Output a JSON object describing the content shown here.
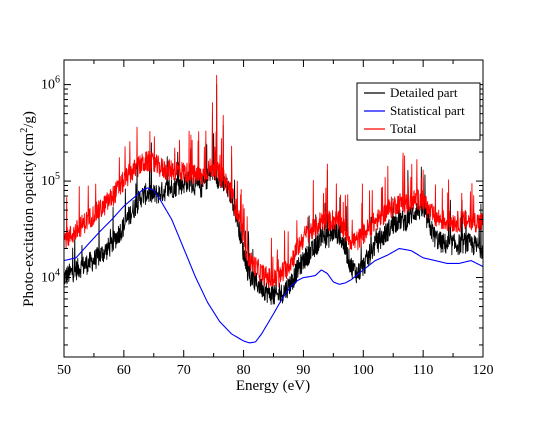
{
  "chart_data": {
    "type": "line",
    "title": "",
    "xlabel": "Energy (eV)",
    "ylabel_prefix": "Photo-excitation opacity (cm",
    "ylabel_sup": "2",
    "ylabel_suffix": "/g)",
    "xlim": [
      50,
      120
    ],
    "ylim": [
      1500,
      1800000
    ],
    "yscale": "log",
    "x_ticks": [
      50,
      60,
      70,
      80,
      90,
      100,
      110,
      120
    ],
    "x_tick_labels": [
      "50",
      "60",
      "70",
      "80",
      "90",
      "100",
      "110",
      "120"
    ],
    "y_ticks": [
      {
        "value": 10000,
        "base": "10",
        "exp": "4"
      },
      {
        "value": 100000,
        "base": "10",
        "exp": "5"
      },
      {
        "value": 1000000,
        "base": "10",
        "exp": "6"
      }
    ],
    "grid": false,
    "legend_position": "top-right",
    "series": [
      {
        "name": "Detailed part",
        "color": "#000000",
        "noisy": true,
        "x": [
          50,
          51,
          52,
          53,
          54,
          55,
          56,
          57,
          58,
          59,
          60,
          61,
          62,
          63,
          64,
          65,
          66,
          67,
          68,
          69,
          70,
          71,
          72,
          73,
          74,
          75,
          76,
          77,
          78,
          79,
          80,
          81,
          82,
          83,
          84,
          85,
          86,
          87,
          88,
          89,
          90,
          91,
          92,
          93,
          94,
          95,
          96,
          97,
          98,
          99,
          100,
          101,
          102,
          103,
          104,
          105,
          106,
          107,
          108,
          109,
          110,
          111,
          112,
          113,
          114,
          115,
          116,
          117,
          118,
          119,
          120
        ],
        "values": [
          10000,
          11000,
          12000,
          13000,
          14000,
          15000,
          17000,
          19000,
          22000,
          28000,
          34000,
          45000,
          56000,
          70000,
          75000,
          72000,
          75000,
          80000,
          85000,
          90000,
          95000,
          100000,
          90000,
          85000,
          110000,
          130000,
          100000,
          90000,
          70000,
          40000,
          18000,
          10000,
          9000,
          8000,
          7000,
          6500,
          6500,
          7500,
          9000,
          12000,
          15000,
          18000,
          20000,
          28000,
          25000,
          30000,
          28000,
          20000,
          13000,
          11000,
          13000,
          17000,
          22000,
          25000,
          30000,
          36000,
          40000,
          38000,
          45000,
          50000,
          50000,
          35000,
          26000,
          23000,
          22000,
          22000,
          22000,
          23000,
          22000,
          21000,
          20000
        ],
        "spikes": [
          [
            75.5,
            1000000
          ],
          [
            74.8,
            500000
          ],
          [
            76.6,
            380000
          ],
          [
            73.7,
            250000
          ],
          [
            71.2,
            220000
          ],
          [
            78.0,
            180000
          ],
          [
            94.0,
            130000
          ],
          [
            110.0,
            110000
          ],
          [
            107.5,
            80000
          ]
        ]
      },
      {
        "name": "Statistical part",
        "color": "#0000ff",
        "noisy": false,
        "x": [
          50,
          52,
          54,
          56,
          58,
          60,
          62,
          63,
          64,
          65,
          66,
          68,
          70,
          72,
          74,
          76,
          78,
          80,
          81,
          82,
          83,
          84,
          85,
          86,
          87,
          88,
          89,
          90,
          91,
          92,
          93,
          94,
          95,
          96,
          97,
          98,
          100,
          102,
          104,
          106,
          108,
          110,
          112,
          114,
          116,
          118,
          120
        ],
        "values": [
          15000,
          16000,
          22000,
          30000,
          40000,
          55000,
          70000,
          80000,
          85000,
          80000,
          65000,
          40000,
          20000,
          10000,
          5500,
          3500,
          2600,
          2200,
          2100,
          2150,
          2600,
          3300,
          4200,
          5400,
          6800,
          8200,
          9300,
          10000,
          10200,
          10500,
          12000,
          11000,
          9000,
          8500,
          8800,
          9500,
          12000,
          15000,
          17000,
          20000,
          19000,
          16000,
          15000,
          14000,
          14000,
          15000,
          13000
        ]
      },
      {
        "name": "Total",
        "color": "#ff0000",
        "noisy": true,
        "x": [
          50,
          51,
          52,
          53,
          54,
          55,
          56,
          57,
          58,
          59,
          60,
          61,
          62,
          63,
          64,
          65,
          66,
          67,
          68,
          69,
          70,
          71,
          72,
          73,
          74,
          75,
          76,
          77,
          78,
          79,
          80,
          81,
          82,
          83,
          84,
          85,
          86,
          87,
          88,
          89,
          90,
          91,
          92,
          93,
          94,
          95,
          96,
          97,
          98,
          99,
          100,
          101,
          102,
          103,
          104,
          105,
          106,
          107,
          108,
          109,
          110,
          111,
          112,
          113,
          114,
          115,
          116,
          117,
          118,
          119,
          120
        ],
        "values": [
          25000,
          27000,
          30000,
          35000,
          40000,
          45000,
          50000,
          58000,
          68000,
          82000,
          100000,
          120000,
          135000,
          150000,
          160000,
          150000,
          140000,
          130000,
          130000,
          130000,
          125000,
          120000,
          115000,
          110000,
          130000,
          140000,
          115000,
          100000,
          75000,
          45000,
          25000,
          15000,
          13000,
          11000,
          10000,
          9500,
          10000,
          12000,
          15000,
          20000,
          26000,
          30000,
          32000,
          40000,
          38000,
          40000,
          38000,
          30000,
          24000,
          24000,
          28000,
          33000,
          38000,
          42000,
          50000,
          55000,
          60000,
          58000,
          62000,
          65000,
          62000,
          48000,
          42000,
          40000,
          38000,
          38000,
          38000,
          39000,
          38000,
          38000,
          37000
        ],
        "spikes": [
          [
            75.5,
            1250000
          ],
          [
            74.8,
            650000
          ],
          [
            76.6,
            480000
          ],
          [
            73.7,
            330000
          ],
          [
            71.2,
            300000
          ],
          [
            72.4,
            260000
          ],
          [
            78.0,
            230000
          ],
          [
            68.5,
            220000
          ],
          [
            94.0,
            150000
          ],
          [
            110.0,
            130000
          ],
          [
            107.5,
            100000
          ]
        ]
      }
    ]
  }
}
